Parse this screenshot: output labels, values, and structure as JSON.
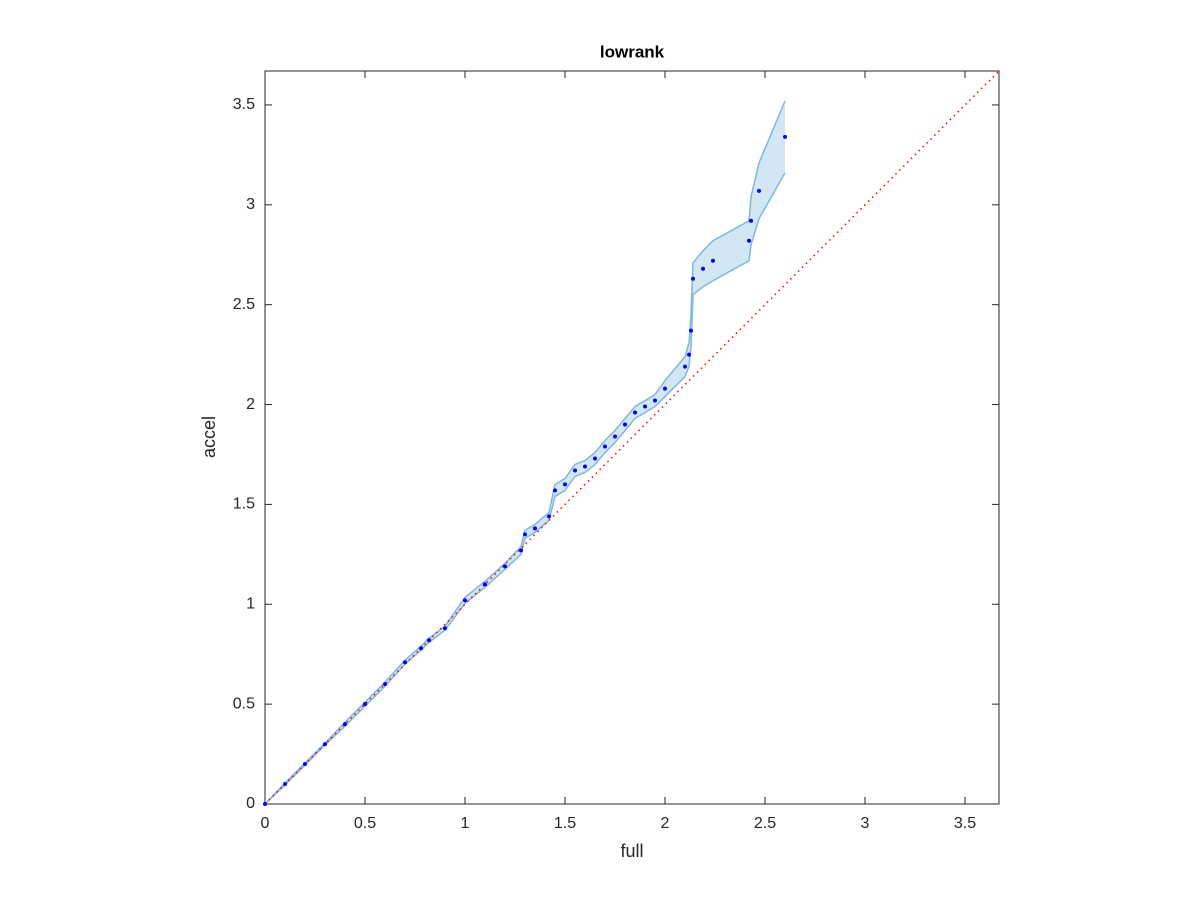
{
  "chart_data": {
    "type": "scatter",
    "title": "lowrank",
    "xlabel": "full",
    "ylabel": "accel",
    "x": [
      0,
      0.1,
      0.2,
      0.3,
      0.4,
      0.5,
      0.6,
      0.7,
      0.78,
      0.82,
      0.9,
      1.0,
      1.1,
      1.2,
      1.28,
      1.3,
      1.35,
      1.42,
      1.45,
      1.5,
      1.55,
      1.6,
      1.65,
      1.7,
      1.75,
      1.8,
      1.85,
      1.9,
      1.95,
      2.0,
      2.1,
      2.12,
      2.13,
      2.14,
      2.19,
      2.24,
      2.42,
      2.43,
      2.47,
      2.6
    ],
    "values": [
      0,
      0.1,
      0.2,
      0.3,
      0.4,
      0.5,
      0.6,
      0.71,
      0.78,
      0.82,
      0.88,
      1.02,
      1.1,
      1.19,
      1.27,
      1.35,
      1.38,
      1.44,
      1.57,
      1.6,
      1.67,
      1.69,
      1.73,
      1.79,
      1.84,
      1.9,
      1.96,
      1.99,
      2.02,
      2.08,
      2.19,
      2.25,
      2.37,
      2.63,
      2.68,
      2.72,
      2.82,
      2.92,
      3.07,
      3.34
    ],
    "color": "#0000ff",
    "band": {
      "color": "#7fb8dc",
      "upper": [
        0,
        0.105,
        0.205,
        0.305,
        0.41,
        0.51,
        0.61,
        0.72,
        0.79,
        0.83,
        0.89,
        1.035,
        1.115,
        1.205,
        1.29,
        1.37,
        1.4,
        1.46,
        1.6,
        1.63,
        1.7,
        1.72,
        1.76,
        1.82,
        1.87,
        1.93,
        1.99,
        2.02,
        2.05,
        2.12,
        2.24,
        2.31,
        2.45,
        2.71,
        2.77,
        2.82,
        2.92,
        3.04,
        3.21,
        3.52
      ],
      "lower": [
        0,
        0.095,
        0.195,
        0.295,
        0.39,
        0.49,
        0.59,
        0.7,
        0.77,
        0.81,
        0.87,
        1.005,
        1.085,
        1.175,
        1.25,
        1.33,
        1.36,
        1.42,
        1.54,
        1.57,
        1.64,
        1.66,
        1.7,
        1.76,
        1.81,
        1.87,
        1.93,
        1.96,
        1.99,
        2.04,
        2.14,
        2.19,
        2.29,
        2.55,
        2.59,
        2.62,
        2.72,
        2.8,
        2.93,
        3.16
      ]
    },
    "reference_line": {
      "x": [
        0,
        3.67
      ],
      "y": [
        0,
        3.67
      ],
      "color": "#ff0000"
    },
    "xlim": [
      0,
      3.67
    ],
    "ylim": [
      0,
      3.67
    ],
    "xticks": [
      0,
      0.5,
      1,
      1.5,
      2,
      2.5,
      3,
      3.5
    ],
    "yticks": [
      0,
      0.5,
      1,
      1.5,
      2,
      2.5,
      3,
      3.5
    ]
  }
}
